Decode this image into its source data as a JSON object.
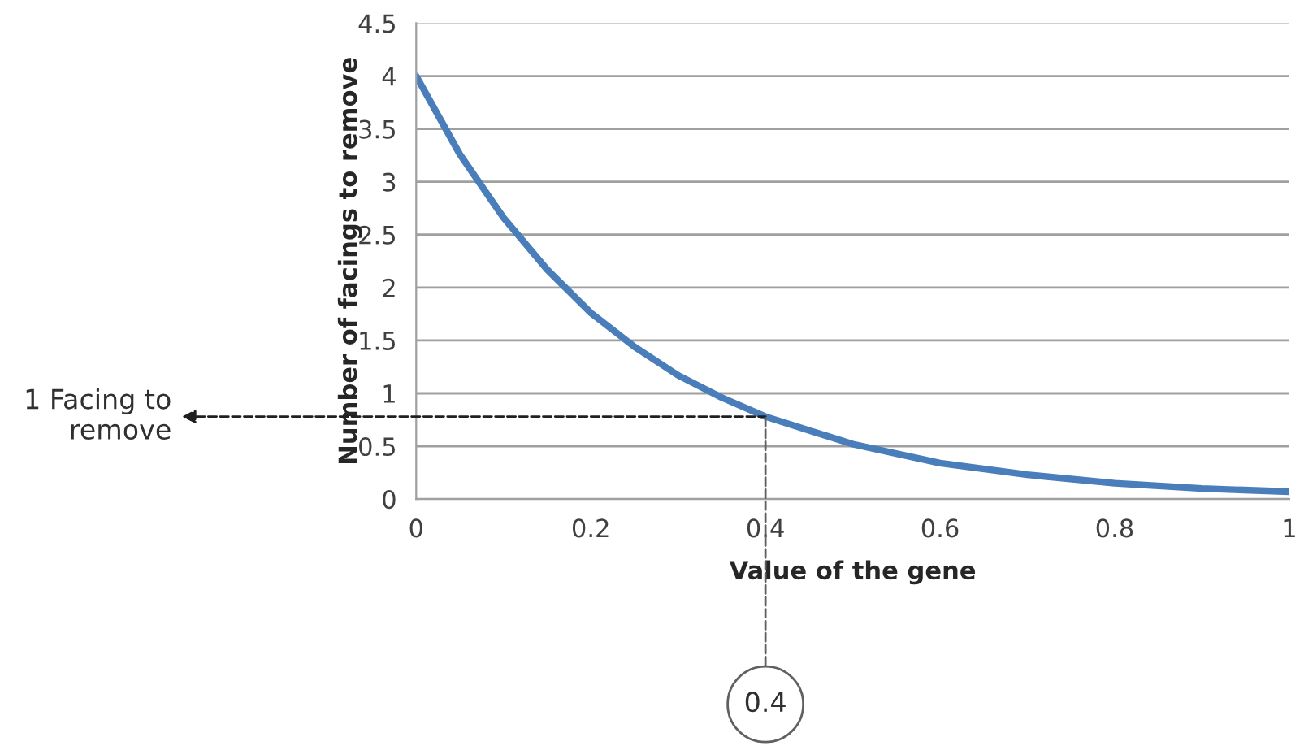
{
  "chart_data": {
    "type": "line",
    "xlabel": "Value of the gene",
    "ylabel": "Number of facings to remove",
    "x": [
      0,
      0.05,
      0.1,
      0.15,
      0.2,
      0.25,
      0.3,
      0.35,
      0.4,
      0.5,
      0.6,
      0.7,
      0.8,
      0.9,
      1
    ],
    "series": [
      {
        "color": "#4a7ebb",
        "values": [
          4,
          3.26,
          2.66,
          2.17,
          1.76,
          1.44,
          1.17,
          0.96,
          0.78,
          0.52,
          0.34,
          0.23,
          0.15,
          0.1,
          0.07
        ]
      }
    ],
    "xlim": [
      0,
      1
    ],
    "xticks": [
      0,
      0.2,
      0.4,
      0.6,
      0.8,
      1
    ],
    "ylim": [
      0,
      4.5
    ],
    "yticks": [
      0,
      0.5,
      1,
      1.5,
      2,
      2.5,
      3,
      3.5,
      4,
      4.5
    ],
    "grid": "y",
    "legend": false,
    "marker": "none",
    "line_style": "solid",
    "annotations": [
      {
        "text": "1 Facing to\nremove",
        "x": 0.4,
        "y": 0.78
      },
      {
        "text": "0.4",
        "x": 0.4,
        "y": 0.78
      }
    ]
  }
}
